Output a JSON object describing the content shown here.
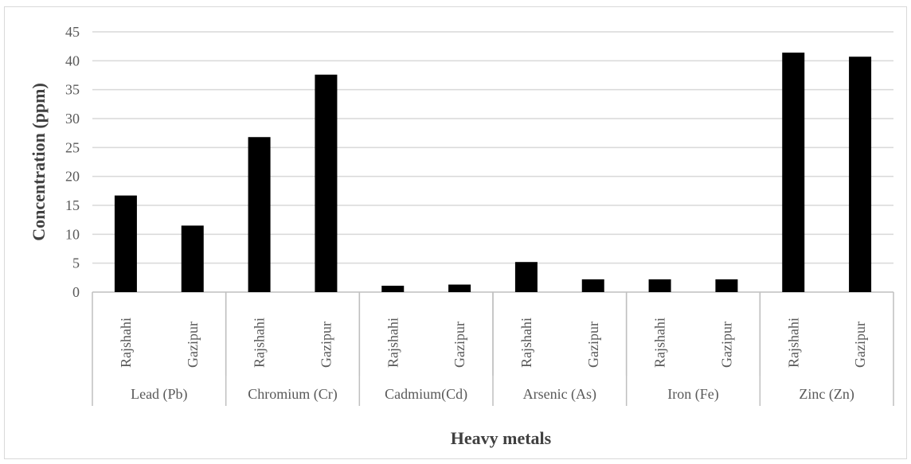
{
  "chart_data": {
    "type": "bar",
    "xlabel": "Heavy metals",
    "ylabel": "Concentration (ppm)",
    "ylim": [
      0,
      45
    ],
    "yticks": [
      0,
      5,
      10,
      15,
      20,
      25,
      30,
      35,
      40,
      45
    ],
    "grid": true,
    "legend": "none",
    "bar_color": "#000000",
    "groups": [
      {
        "label": "Lead (Pb)",
        "categories": [
          "Rajshahi",
          "Gazipur"
        ],
        "values": [
          16.7,
          11.5
        ]
      },
      {
        "label": "Chromium (Cr)",
        "categories": [
          "Rajshahi",
          "Gazipur"
        ],
        "values": [
          26.8,
          37.6
        ]
      },
      {
        "label": "Cadmium(Cd)",
        "categories": [
          "Rajshahi",
          "Gazipur"
        ],
        "values": [
          1.1,
          1.3
        ]
      },
      {
        "label": "Arsenic (As)",
        "categories": [
          "Rajshahi",
          "Gazipur"
        ],
        "values": [
          5.2,
          2.2
        ]
      },
      {
        "label": "Iron (Fe)",
        "categories": [
          "Rajshahi",
          "Gazipur"
        ],
        "values": [
          2.2,
          2.2
        ]
      },
      {
        "label": "Zinc (Zn)",
        "categories": [
          "Rajshahi",
          "Gazipur"
        ],
        "values": [
          41.4,
          40.7
        ]
      }
    ]
  }
}
